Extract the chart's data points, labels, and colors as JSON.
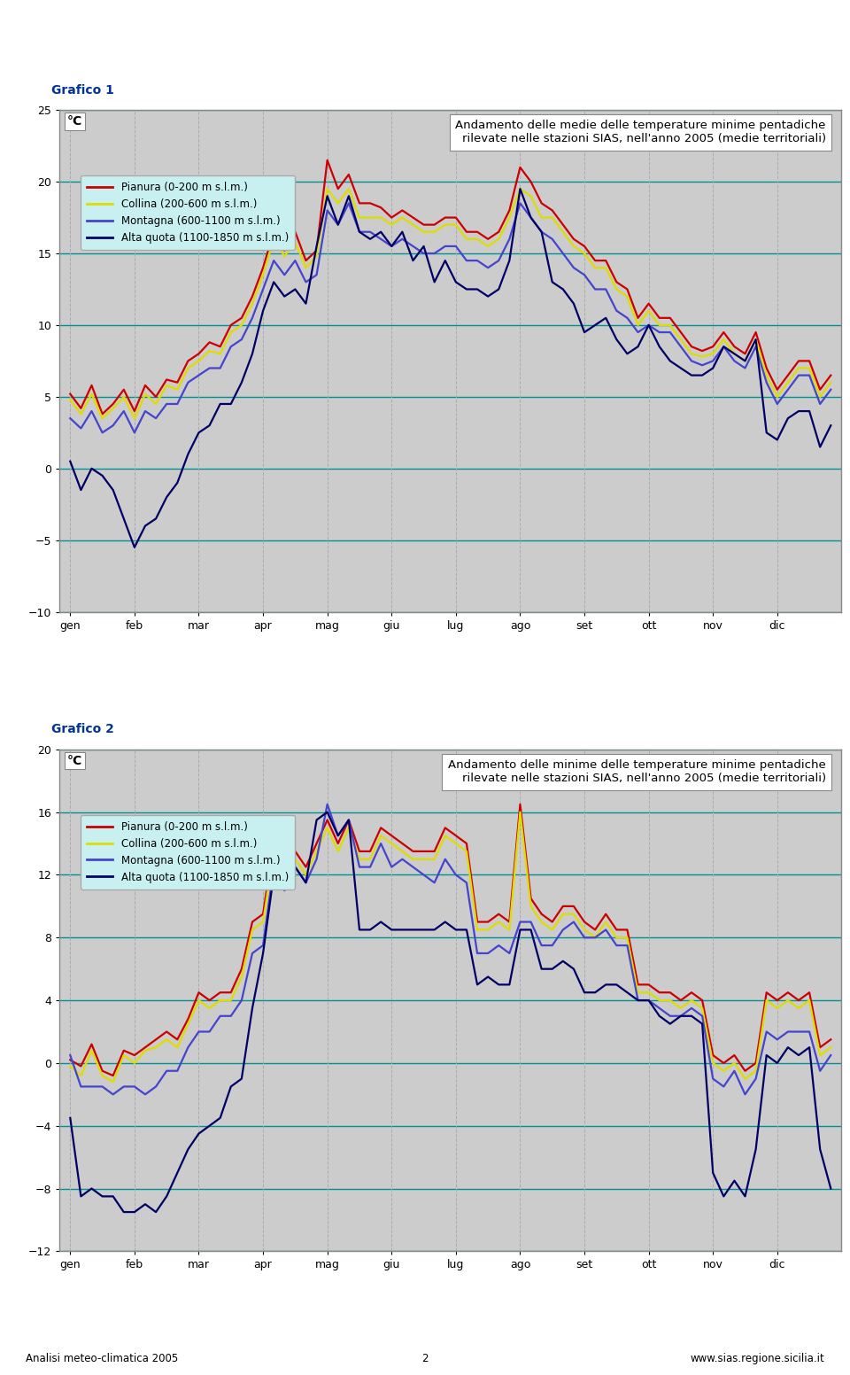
{
  "title1": "Andamento delle medie delle temperature minime pentadiche\nrilevate nelle stazioni SIAS, nell'anno 2005 (medie territoriali)",
  "title2": "Andamento delle minime delle temperature minime pentadiche\nrilevate nelle stazioni SIAS, nell'anno 2005 (medie territoriali)",
  "grafico1": "Grafico 1",
  "grafico2": "Grafico 2",
  "ylabel": "°C",
  "months": [
    "gen",
    "feb",
    "mar",
    "apr",
    "mag",
    "giu",
    "lug",
    "ago",
    "set",
    "ott",
    "nov",
    "dic"
  ],
  "legend_labels": [
    "Pianura (0-200 m s.l.m.)",
    "Collina (200-600 m s.l.m.)",
    "Montagna (600-1100 m s.l.m.)",
    "Alta quota (1100-1850 m s.l.m.)"
  ],
  "line_colors": [
    "#cc0000",
    "#dddd00",
    "#4444cc",
    "#000066"
  ],
  "outer_bg": "#ffffff",
  "plot_bg_color": "#cccccc",
  "border_color": "#999999",
  "legend_bg": "#c8f0f0",
  "grid_color_h": "#009090",
  "grid_color_v": "#aaaaaa",
  "ylim1": [
    -10,
    25
  ],
  "yticks1": [
    -10,
    -5,
    0,
    5,
    10,
    15,
    20,
    25
  ],
  "ylim2": [
    -12,
    20
  ],
  "yticks2": [
    -12,
    -8,
    -4,
    0,
    4,
    8,
    12,
    16,
    20
  ],
  "footer_left": "Analisi meteo-climatica 2005",
  "footer_center": "2",
  "footer_right": "www.sias.regione.sicilia.it",
  "graph1_pianura": [
    5.2,
    4.2,
    5.8,
    3.8,
    4.5,
    5.5,
    4.0,
    5.8,
    5.0,
    6.2,
    6.0,
    7.5,
    8.0,
    8.8,
    8.5,
    10.0,
    10.5,
    12.0,
    14.0,
    16.5,
    15.2,
    16.5,
    14.5,
    15.2,
    21.5,
    19.5,
    20.5,
    18.5,
    18.5,
    18.2,
    17.5,
    18.0,
    17.5,
    17.0,
    17.0,
    17.5,
    17.5,
    16.5,
    16.5,
    16.0,
    16.5,
    18.0,
    21.0,
    20.0,
    18.5,
    18.0,
    17.0,
    16.0,
    15.5,
    14.5,
    14.5,
    13.0,
    12.5,
    10.5,
    11.5,
    10.5,
    10.5,
    9.5,
    8.5,
    8.2,
    8.5,
    9.5,
    8.5,
    8.0,
    9.5,
    7.0,
    5.5,
    6.5,
    7.5,
    7.5,
    5.5,
    6.5
  ],
  "graph1_collina": [
    4.8,
    3.8,
    5.2,
    3.5,
    4.2,
    5.0,
    3.5,
    5.2,
    4.5,
    5.8,
    5.5,
    7.0,
    7.5,
    8.2,
    8.0,
    9.5,
    10.0,
    11.5,
    13.5,
    16.0,
    14.8,
    15.8,
    14.0,
    14.8,
    19.5,
    18.5,
    19.5,
    17.5,
    17.5,
    17.5,
    17.0,
    17.5,
    17.0,
    16.5,
    16.5,
    17.0,
    17.0,
    16.0,
    16.0,
    15.5,
    16.0,
    17.5,
    19.5,
    19.0,
    17.5,
    17.5,
    16.5,
    15.5,
    15.0,
    14.0,
    14.0,
    12.5,
    12.0,
    10.0,
    11.0,
    10.0,
    10.0,
    9.0,
    8.0,
    7.8,
    8.0,
    9.0,
    8.0,
    7.5,
    9.0,
    6.5,
    5.0,
    6.0,
    7.0,
    7.0,
    5.0,
    6.0
  ],
  "graph1_montagna": [
    3.5,
    2.8,
    4.0,
    2.5,
    3.0,
    4.0,
    2.5,
    4.0,
    3.5,
    4.5,
    4.5,
    6.0,
    6.5,
    7.0,
    7.0,
    8.5,
    9.0,
    10.5,
    12.5,
    14.5,
    13.5,
    14.5,
    13.0,
    13.5,
    18.0,
    17.0,
    18.5,
    16.5,
    16.5,
    16.0,
    15.5,
    16.0,
    15.5,
    15.0,
    15.0,
    15.5,
    15.5,
    14.5,
    14.5,
    14.0,
    14.5,
    16.0,
    18.5,
    17.5,
    16.5,
    16.0,
    15.0,
    14.0,
    13.5,
    12.5,
    12.5,
    11.0,
    10.5,
    9.5,
    10.0,
    9.5,
    9.5,
    8.5,
    7.5,
    7.2,
    7.5,
    8.5,
    7.5,
    7.0,
    8.5,
    6.0,
    4.5,
    5.5,
    6.5,
    6.5,
    4.5,
    5.5
  ],
  "graph1_altaquota": [
    0.5,
    -1.5,
    0.0,
    -0.5,
    -1.5,
    -3.5,
    -5.5,
    -4.0,
    -3.5,
    -2.0,
    -1.0,
    1.0,
    2.5,
    3.0,
    4.5,
    4.5,
    6.0,
    8.0,
    11.0,
    13.0,
    12.0,
    12.5,
    11.5,
    15.5,
    19.0,
    17.0,
    19.0,
    16.5,
    16.0,
    16.5,
    15.5,
    16.5,
    14.5,
    15.5,
    13.0,
    14.5,
    13.0,
    12.5,
    12.5,
    12.0,
    12.5,
    14.5,
    19.5,
    17.5,
    16.5,
    13.0,
    12.5,
    11.5,
    9.5,
    10.0,
    10.5,
    9.0,
    8.0,
    8.5,
    10.0,
    8.5,
    7.5,
    7.0,
    6.5,
    6.5,
    7.0,
    8.5,
    8.0,
    7.5,
    9.0,
    2.5,
    2.0,
    3.5,
    4.0,
    4.0,
    1.5,
    3.0
  ],
  "graph2_pianura": [
    0.2,
    -0.2,
    1.2,
    -0.5,
    -0.8,
    0.8,
    0.5,
    1.0,
    1.5,
    2.0,
    1.5,
    2.8,
    4.5,
    4.0,
    4.5,
    4.5,
    6.0,
    9.0,
    9.5,
    14.0,
    12.5,
    13.5,
    12.5,
    14.0,
    15.5,
    14.0,
    15.5,
    13.5,
    13.5,
    15.0,
    14.5,
    14.0,
    13.5,
    13.5,
    13.5,
    15.0,
    14.5,
    14.0,
    9.0,
    9.0,
    9.5,
    9.0,
    16.5,
    10.5,
    9.5,
    9.0,
    10.0,
    10.0,
    9.0,
    8.5,
    9.5,
    8.5,
    8.5,
    5.0,
    5.0,
    4.5,
    4.5,
    4.0,
    4.5,
    4.0,
    0.5,
    0.0,
    0.5,
    -0.5,
    0.0,
    4.5,
    4.0,
    4.5,
    4.0,
    4.5,
    1.0,
    1.5
  ],
  "graph2_collina": [
    -0.2,
    -0.8,
    0.8,
    -0.8,
    -1.2,
    0.5,
    0.0,
    0.8,
    1.0,
    1.5,
    1.0,
    2.5,
    4.0,
    3.5,
    4.0,
    4.0,
    5.5,
    8.5,
    9.0,
    13.5,
    12.0,
    13.0,
    12.0,
    13.5,
    15.0,
    13.5,
    15.0,
    13.0,
    13.0,
    14.5,
    14.0,
    13.5,
    13.0,
    13.0,
    13.0,
    14.5,
    14.0,
    13.5,
    8.5,
    8.5,
    9.0,
    8.5,
    16.0,
    10.0,
    9.0,
    8.5,
    9.5,
    9.5,
    8.5,
    8.0,
    9.0,
    8.0,
    8.0,
    4.5,
    4.5,
    4.0,
    4.0,
    3.5,
    4.0,
    3.5,
    0.0,
    -0.5,
    0.0,
    -1.0,
    -0.5,
    4.0,
    3.5,
    4.0,
    3.5,
    4.0,
    0.5,
    1.0
  ],
  "graph2_montagna": [
    0.5,
    -1.5,
    -1.5,
    -1.5,
    -2.0,
    -1.5,
    -1.5,
    -2.0,
    -1.5,
    -0.5,
    -0.5,
    1.0,
    2.0,
    2.0,
    3.0,
    3.0,
    4.0,
    7.0,
    7.5,
    12.5,
    11.0,
    12.5,
    11.5,
    13.0,
    16.5,
    14.5,
    15.5,
    12.5,
    12.5,
    14.0,
    12.5,
    13.0,
    12.5,
    12.0,
    11.5,
    13.0,
    12.0,
    11.5,
    7.0,
    7.0,
    7.5,
    7.0,
    9.0,
    9.0,
    7.5,
    7.5,
    8.5,
    9.0,
    8.0,
    8.0,
    8.5,
    7.5,
    7.5,
    4.0,
    4.0,
    3.5,
    3.0,
    3.0,
    3.5,
    3.0,
    -1.0,
    -1.5,
    -0.5,
    -2.0,
    -1.0,
    2.0,
    1.5,
    2.0,
    2.0,
    2.0,
    -0.5,
    0.5
  ],
  "graph2_altaquota": [
    -3.5,
    -8.5,
    -8.0,
    -8.5,
    -8.5,
    -9.5,
    -9.5,
    -9.0,
    -9.5,
    -8.5,
    -7.0,
    -5.5,
    -4.5,
    -4.0,
    -3.5,
    -1.5,
    -1.0,
    3.5,
    7.0,
    12.0,
    12.0,
    12.5,
    11.5,
    15.5,
    16.0,
    14.5,
    15.5,
    8.5,
    8.5,
    9.0,
    8.5,
    8.5,
    8.5,
    8.5,
    8.5,
    9.0,
    8.5,
    8.5,
    5.0,
    5.5,
    5.0,
    5.0,
    8.5,
    8.5,
    6.0,
    6.0,
    6.5,
    6.0,
    4.5,
    4.5,
    5.0,
    5.0,
    4.5,
    4.0,
    4.0,
    3.0,
    2.5,
    3.0,
    3.0,
    2.5,
    -7.0,
    -8.5,
    -7.5,
    -8.5,
    -5.5,
    0.5,
    0.0,
    1.0,
    0.5,
    1.0,
    -5.5,
    -8.0
  ]
}
